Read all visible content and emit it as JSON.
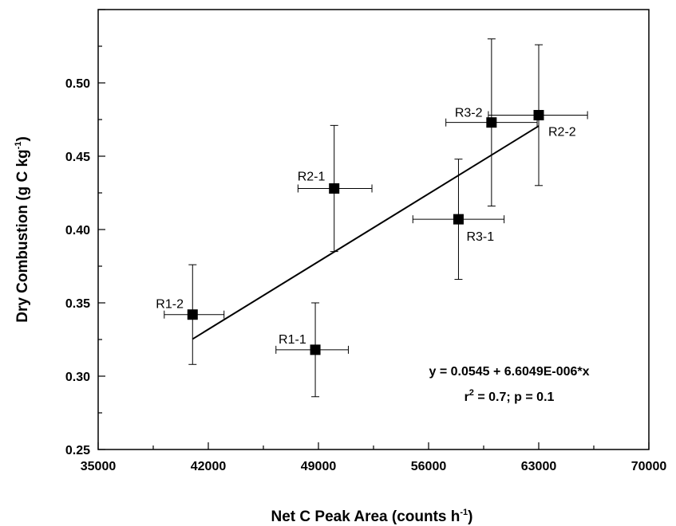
{
  "chart_data": {
    "type": "scatter",
    "title": "",
    "xlabel": {
      "main": "Net C Peak Area (counts h",
      "sup": "-1",
      "tail": ")"
    },
    "ylabel": {
      "main": "Dry Combustion (g C kg",
      "sup": "-1",
      "tail": ")"
    },
    "xlim": [
      35000,
      70000
    ],
    "ylim": [
      0.25,
      0.55
    ],
    "x_ticks": [
      "35000",
      "42000",
      "49000",
      "56000",
      "63000",
      "70000"
    ],
    "y_ticks": [
      "0.25",
      "0.30",
      "0.35",
      "0.40",
      "0.45",
      "0.50"
    ],
    "grid": false,
    "points": [
      {
        "label": "R1-1",
        "x": 48800,
        "y": 0.318,
        "xerr": [
          46300,
          50900
        ],
        "yerr": [
          0.286,
          0.35
        ]
      },
      {
        "label": "R1-2",
        "x": 41000,
        "y": 0.342,
        "xerr": [
          39200,
          43000
        ],
        "yerr": [
          0.308,
          0.376
        ]
      },
      {
        "label": "R2-1",
        "x": 50000,
        "y": 0.428,
        "xerr": [
          47700,
          52400
        ],
        "yerr": [
          0.385,
          0.471
        ]
      },
      {
        "label": "R2-2",
        "x": 63000,
        "y": 0.478,
        "xerr": [
          59800,
          66100
        ],
        "yerr": [
          0.43,
          0.526
        ]
      },
      {
        "label": "R3-1",
        "x": 57900,
        "y": 0.407,
        "xerr": [
          55000,
          60800
        ],
        "yerr": [
          0.366,
          0.448
        ]
      },
      {
        "label": "R3-2",
        "x": 60000,
        "y": 0.473,
        "xerr": [
          57100,
          62900
        ],
        "yerr": [
          0.416,
          0.53
        ]
      }
    ],
    "regression": {
      "intercept": 0.0545,
      "slope": 6.6049e-06,
      "x_range": [
        41000,
        63000
      ],
      "equation": "y = 0.0545 + 6.6049E-006*x",
      "stats": {
        "r": "r",
        "r_sup": "2",
        "rest": " = 0.7; p = 0.1"
      }
    }
  },
  "colors": {
    "marker": "#000000",
    "line": "#000000",
    "axis": "#000000"
  }
}
